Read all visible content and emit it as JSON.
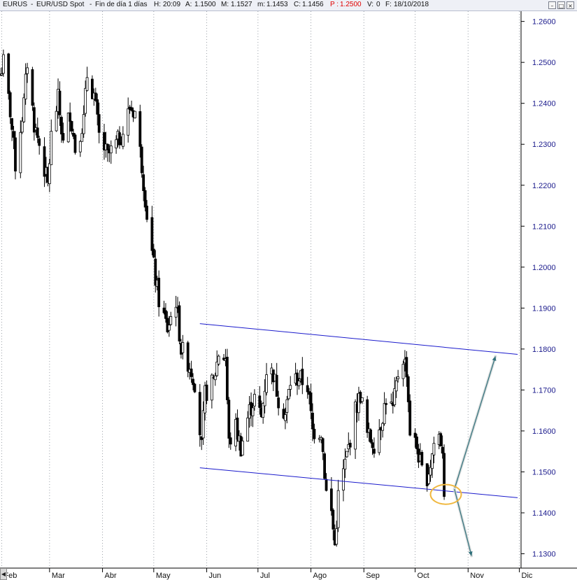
{
  "header": {
    "symbol": "EURUS",
    "description": "EUR/USD Spot",
    "period": "Fin de día 1 días",
    "items": [
      {
        "label": "H:",
        "value": "20:09"
      },
      {
        "label": "A:",
        "value": "1.1500"
      },
      {
        "label": "M:",
        "value": "1.1527"
      },
      {
        "label": "m:",
        "value": "1.1453"
      },
      {
        "label": "C:",
        "value": "1.1456"
      },
      {
        "label": "P :",
        "value": "1.2500",
        "color": "#e00000"
      },
      {
        "label": "V:",
        "value": "0"
      },
      {
        "label": "F:",
        "value": "18/10/2018"
      }
    ],
    "window_buttons": [
      "minimize-icon",
      "restore-icon",
      "close-icon"
    ]
  },
  "colors": {
    "candle": "#000000",
    "channel": "#1a1acc",
    "arrows": "#2f6f7a",
    "highlight": "#f0b840",
    "axis_text": "#1a1a8c"
  },
  "chart_data": {
    "type": "candlestick",
    "title": "EURUS - EUR/USD Spot - Fin de día 1 días",
    "xlabel": "",
    "ylabel": "",
    "ylim": [
      1.1265,
      1.2625
    ],
    "y_ticks": [
      1.26,
      1.25,
      1.24,
      1.23,
      1.22,
      1.21,
      1.2,
      1.19,
      1.18,
      1.17,
      1.16,
      1.15,
      1.14,
      1.13
    ],
    "y_tick_labels": [
      "1.2600",
      "1.2500",
      "1.2400",
      "1.2300",
      "1.2200",
      "1.2100",
      "1.2000",
      "1.1900",
      "1.1800",
      "1.1700",
      "1.1600",
      "1.1500",
      "1.1400",
      "1.1300"
    ],
    "x_range": [
      "2018-01-31",
      "2018-12-02"
    ],
    "x_ticks": [
      {
        "date": "2018-02-01",
        "label": "Feb"
      },
      {
        "date": "2018-03-01",
        "label": "Mar"
      },
      {
        "date": "2018-04-01",
        "label": "Abr"
      },
      {
        "date": "2018-05-01",
        "label": "May"
      },
      {
        "date": "2018-06-01",
        "label": "Jun"
      },
      {
        "date": "2018-07-01",
        "label": "Jul"
      },
      {
        "date": "2018-08-01",
        "label": "Ago"
      },
      {
        "date": "2018-09-01",
        "label": "Sep"
      },
      {
        "date": "2018-10-01",
        "label": "Oct"
      },
      {
        "date": "2018-11-01",
        "label": "Nov"
      },
      {
        "date": "2018-12-01",
        "label": "Dic"
      }
    ],
    "grid": {
      "vertical": true,
      "horizontal": false
    },
    "price_path": [
      [
        "2018-01-31",
        1.247
      ],
      [
        "2018-02-02",
        1.25
      ],
      [
        "2018-02-06",
        1.238
      ],
      [
        "2018-02-09",
        1.225
      ],
      [
        "2018-02-14",
        1.24
      ],
      [
        "2018-02-16",
        1.25
      ],
      [
        "2018-02-20",
        1.235
      ],
      [
        "2018-02-23",
        1.23
      ],
      [
        "2018-02-28",
        1.22
      ],
      [
        "2018-03-02",
        1.232
      ],
      [
        "2018-03-06",
        1.241
      ],
      [
        "2018-03-09",
        1.23
      ],
      [
        "2018-03-13",
        1.238
      ],
      [
        "2018-03-16",
        1.229
      ],
      [
        "2018-03-21",
        1.236
      ],
      [
        "2018-03-23",
        1.247
      ],
      [
        "2018-03-27",
        1.242
      ],
      [
        "2018-03-30",
        1.232
      ],
      [
        "2018-04-04",
        1.227
      ],
      [
        "2018-04-09",
        1.23
      ],
      [
        "2018-04-13",
        1.233
      ],
      [
        "2018-04-17",
        1.239
      ],
      [
        "2018-04-20",
        1.238
      ],
      [
        "2018-04-24",
        1.225
      ],
      [
        "2018-04-27",
        1.213
      ],
      [
        "2018-05-02",
        1.197
      ],
      [
        "2018-05-04",
        1.192
      ],
      [
        "2018-05-09",
        1.185
      ],
      [
        "2018-05-14",
        1.192
      ],
      [
        "2018-05-17",
        1.18
      ],
      [
        "2018-05-22",
        1.176
      ],
      [
        "2018-05-25",
        1.172
      ],
      [
        "2018-05-29",
        1.156
      ],
      [
        "2018-05-31",
        1.169
      ],
      [
        "2018-06-05",
        1.172
      ],
      [
        "2018-06-08",
        1.179
      ],
      [
        "2018-06-12",
        1.178
      ],
      [
        "2018-06-14",
        1.157
      ],
      [
        "2018-06-18",
        1.161
      ],
      [
        "2018-06-21",
        1.156
      ],
      [
        "2018-06-26",
        1.165
      ],
      [
        "2018-06-29",
        1.168
      ],
      [
        "2018-07-03",
        1.163
      ],
      [
        "2018-07-06",
        1.175
      ],
      [
        "2018-07-10",
        1.174
      ],
      [
        "2018-07-13",
        1.168
      ],
      [
        "2018-07-17",
        1.164
      ],
      [
        "2018-07-20",
        1.172
      ],
      [
        "2018-07-25",
        1.173
      ],
      [
        "2018-07-30",
        1.171
      ],
      [
        "2018-08-02",
        1.16
      ],
      [
        "2018-08-07",
        1.16
      ],
      [
        "2018-08-10",
        1.145
      ],
      [
        "2018-08-13",
        1.14
      ],
      [
        "2018-08-15",
        1.132
      ],
      [
        "2018-08-17",
        1.144
      ],
      [
        "2018-08-20",
        1.15
      ],
      [
        "2018-08-23",
        1.156
      ],
      [
        "2018-08-27",
        1.165
      ],
      [
        "2018-08-30",
        1.169
      ],
      [
        "2018-09-03",
        1.159
      ],
      [
        "2018-09-07",
        1.157
      ],
      [
        "2018-09-11",
        1.162
      ],
      [
        "2018-09-14",
        1.168
      ],
      [
        "2018-09-18",
        1.165
      ],
      [
        "2018-09-21",
        1.174
      ],
      [
        "2018-09-24",
        1.178
      ],
      [
        "2018-09-26",
        1.175
      ],
      [
        "2018-09-28",
        1.16
      ],
      [
        "2018-10-02",
        1.156
      ],
      [
        "2018-10-05",
        1.15
      ],
      [
        "2018-10-08",
        1.149
      ],
      [
        "2018-10-10",
        1.152
      ],
      [
        "2018-10-12",
        1.157
      ],
      [
        "2018-10-15",
        1.159
      ],
      [
        "2018-10-17",
        1.156
      ],
      [
        "2018-10-18",
        1.1456
      ]
    ],
    "annotations": [
      {
        "type": "trendline",
        "name": "channel-upper",
        "from": [
          "2018-05-28",
          1.1862
        ],
        "to": [
          "2018-11-30",
          1.1787
        ]
      },
      {
        "type": "trendline",
        "name": "channel-lower",
        "from": [
          "2018-05-28",
          1.151
        ],
        "to": [
          "2018-11-30",
          1.1437
        ]
      },
      {
        "type": "arrow",
        "name": "arrow-up",
        "from": [
          "2018-10-24",
          1.1458
        ],
        "to": [
          "2018-11-17",
          1.1782
        ]
      },
      {
        "type": "arrow",
        "name": "arrow-down",
        "from": [
          "2018-10-24",
          1.1458
        ],
        "to": [
          "2018-11-03",
          1.1295
        ]
      },
      {
        "type": "ellipse",
        "name": "highlight-ellipse",
        "center": [
          "2018-10-19",
          1.1445
        ],
        "radius_days": 9,
        "radius_price": 0.0024
      }
    ]
  }
}
